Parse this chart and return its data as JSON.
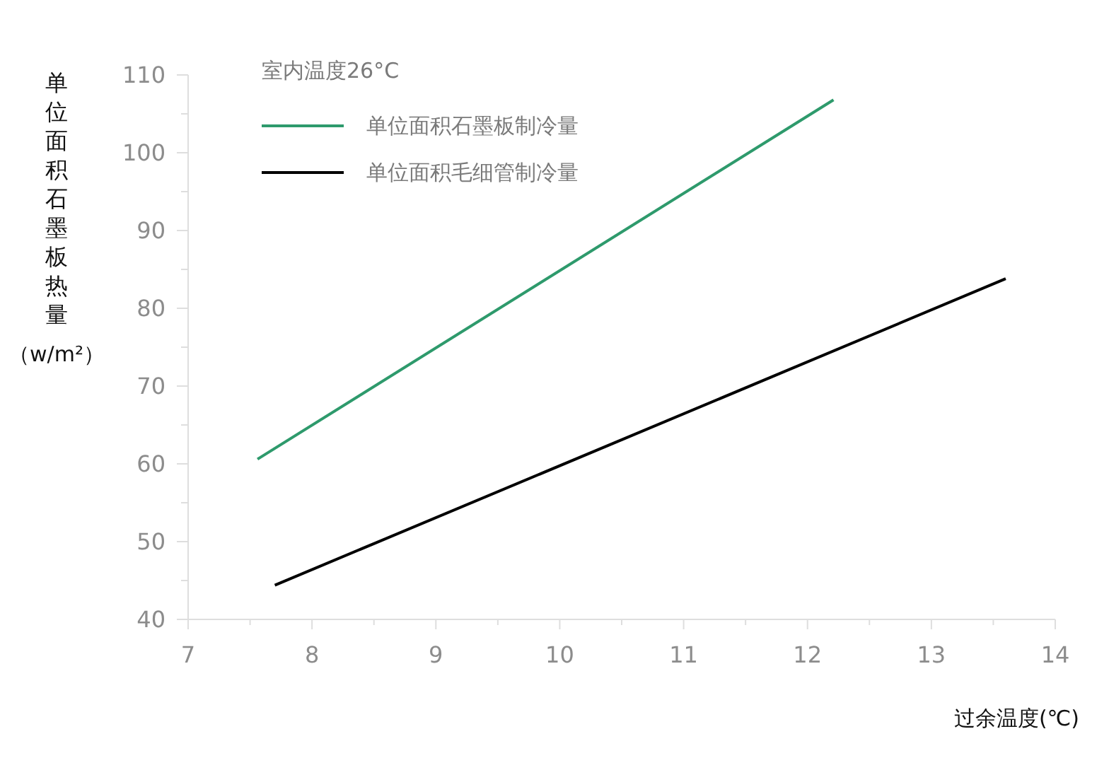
{
  "chart_data": {
    "type": "line",
    "xlabel": "过余温度(℃)",
    "ylabel": "单位面积石墨板热量（w/m²）",
    "legend_title": "室内温度26°C",
    "series": [
      {
        "name": "单位面积石墨板制冷量",
        "color": "#2e9a6c",
        "x": [
          7.56,
          12.21
        ],
        "values": [
          60.6,
          106.8
        ]
      },
      {
        "name": "单位面积毛细管制冷量",
        "color": "#000000",
        "x": [
          7.7,
          13.6
        ],
        "values": [
          44.4,
          83.8
        ]
      }
    ],
    "xlim": [
      7,
      14
    ],
    "xticks": [
      7,
      {
        "value": 7.5,
        "label": null
      },
      8,
      {
        "value": 8.5,
        "label": null
      },
      9,
      {
        "value": 9.5,
        "label": null
      },
      10,
      {
        "value": 10.5,
        "label": null
      },
      11,
      {
        "value": 11.5,
        "label": null
      },
      12,
      {
        "value": 12.5,
        "label": null
      },
      13,
      {
        "value": 13.5,
        "label": null
      },
      14
    ],
    "ylim": [
      40,
      110
    ],
    "yticks": [
      40,
      {
        "value": 45,
        "label": null
      },
      50,
      {
        "value": 55,
        "label": null
      },
      60,
      {
        "value": 65,
        "label": null
      },
      70,
      {
        "value": 75,
        "label": null
      },
      80,
      {
        "value": 85,
        "label": null
      },
      90,
      {
        "value": 95,
        "label": null
      },
      100,
      {
        "value": 105,
        "label": null
      },
      110
    ],
    "legend": "top left",
    "line_style": "solid"
  }
}
